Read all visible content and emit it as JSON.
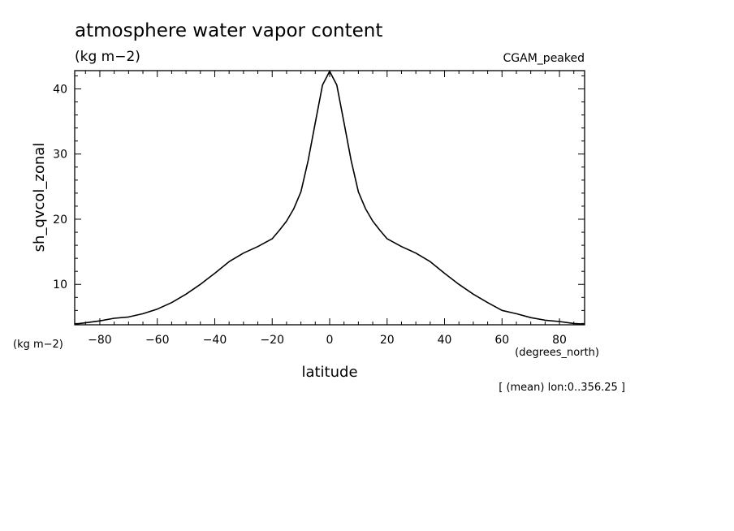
{
  "figure": {
    "title": "atmosphere water vapor content",
    "units_top": "(kg m−2)",
    "dataset": "CGAM_peaked",
    "units_left": "(kg m−2)",
    "x_units": "(degrees_north)",
    "footnote": "[ (mean) lon:0..356.25 ]"
  },
  "chart_data": {
    "type": "line",
    "title": "atmosphere water vapor content",
    "xlabel": "latitude",
    "ylabel": "sh_qvcol_zonal",
    "xlim": [
      -88.75,
      88.75
    ],
    "ylim": [
      3.8,
      42.8
    ],
    "xticks": [
      -80,
      -60,
      -40,
      -20,
      0,
      20,
      40,
      60,
      80
    ],
    "xtick_labels": [
      "−80",
      "−60",
      "−40",
      "−20",
      "0",
      "20",
      "40",
      "60",
      "80"
    ],
    "yticks": [
      10,
      20,
      30,
      40
    ],
    "ytick_labels": [
      "10",
      "20",
      "30",
      "40"
    ],
    "grid": false,
    "line_color": "#000000",
    "series": [
      {
        "x": [
          -88.75,
          -85,
          -80,
          -75,
          -70,
          -65,
          -60,
          -55,
          -50,
          -45,
          -40,
          -35,
          -30,
          -25,
          -20,
          -17.5,
          -15,
          -12.5,
          -10,
          -7.5,
          -5,
          -2.5,
          0,
          2.5,
          5,
          7.5,
          10,
          12.5,
          15,
          17.5,
          20,
          25,
          30,
          35,
          40,
          45,
          50,
          55,
          60,
          65,
          70,
          75,
          80,
          85,
          88.75
        ],
        "y": [
          3.9,
          4.1,
          4.4,
          4.8,
          5.0,
          5.5,
          6.2,
          7.2,
          8.5,
          10.0,
          11.7,
          13.5,
          14.8,
          15.8,
          17.0,
          18.3,
          19.7,
          21.6,
          24.2,
          29.0,
          34.8,
          40.6,
          42.7,
          40.6,
          34.8,
          29.0,
          24.2,
          21.6,
          19.7,
          18.3,
          17.0,
          15.8,
          14.8,
          13.5,
          11.7,
          10.0,
          8.5,
          7.2,
          6.0,
          5.5,
          4.9,
          4.5,
          4.3,
          4.0,
          3.9
        ]
      }
    ]
  }
}
